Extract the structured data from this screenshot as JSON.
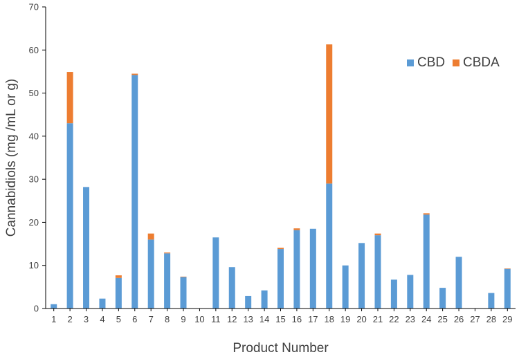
{
  "chart_data": {
    "type": "bar",
    "stacked": true,
    "categories": [
      "1",
      "2",
      "3",
      "4",
      "5",
      "6",
      "7",
      "8",
      "9",
      "10",
      "11",
      "12",
      "13",
      "14",
      "15",
      "16",
      "17",
      "18",
      "19",
      "20",
      "21",
      "22",
      "23",
      "24",
      "25",
      "26",
      "27",
      "28",
      "29"
    ],
    "series": [
      {
        "name": "CBD",
        "color": "#5B9BD5",
        "values": [
          1.0,
          43.0,
          28.2,
          2.3,
          7.1,
          54.2,
          16.0,
          12.8,
          7.3,
          0,
          16.5,
          9.6,
          2.9,
          4.2,
          13.8,
          18.2,
          18.5,
          29.0,
          10.0,
          15.2,
          17.0,
          6.7,
          7.8,
          21.8,
          4.8,
          12.0,
          0,
          3.6,
          9.2
        ]
      },
      {
        "name": "CBDA",
        "color": "#ED7D31",
        "values": [
          0,
          11.9,
          0,
          0,
          0.6,
          0.3,
          1.4,
          0.2,
          0.1,
          0,
          0,
          0,
          0,
          0,
          0.3,
          0.4,
          0,
          32.3,
          0,
          0,
          0.4,
          0,
          0,
          0.3,
          0,
          0,
          0,
          0,
          0.1
        ]
      }
    ],
    "xlabel": "Product Number",
    "ylabel": "Cannabidiols (mg /mL or g)",
    "ylim": [
      0,
      70
    ],
    "yticks": [
      0,
      10,
      20,
      30,
      40,
      50,
      60,
      70
    ],
    "grid": false,
    "legend_position": "top-right"
  }
}
